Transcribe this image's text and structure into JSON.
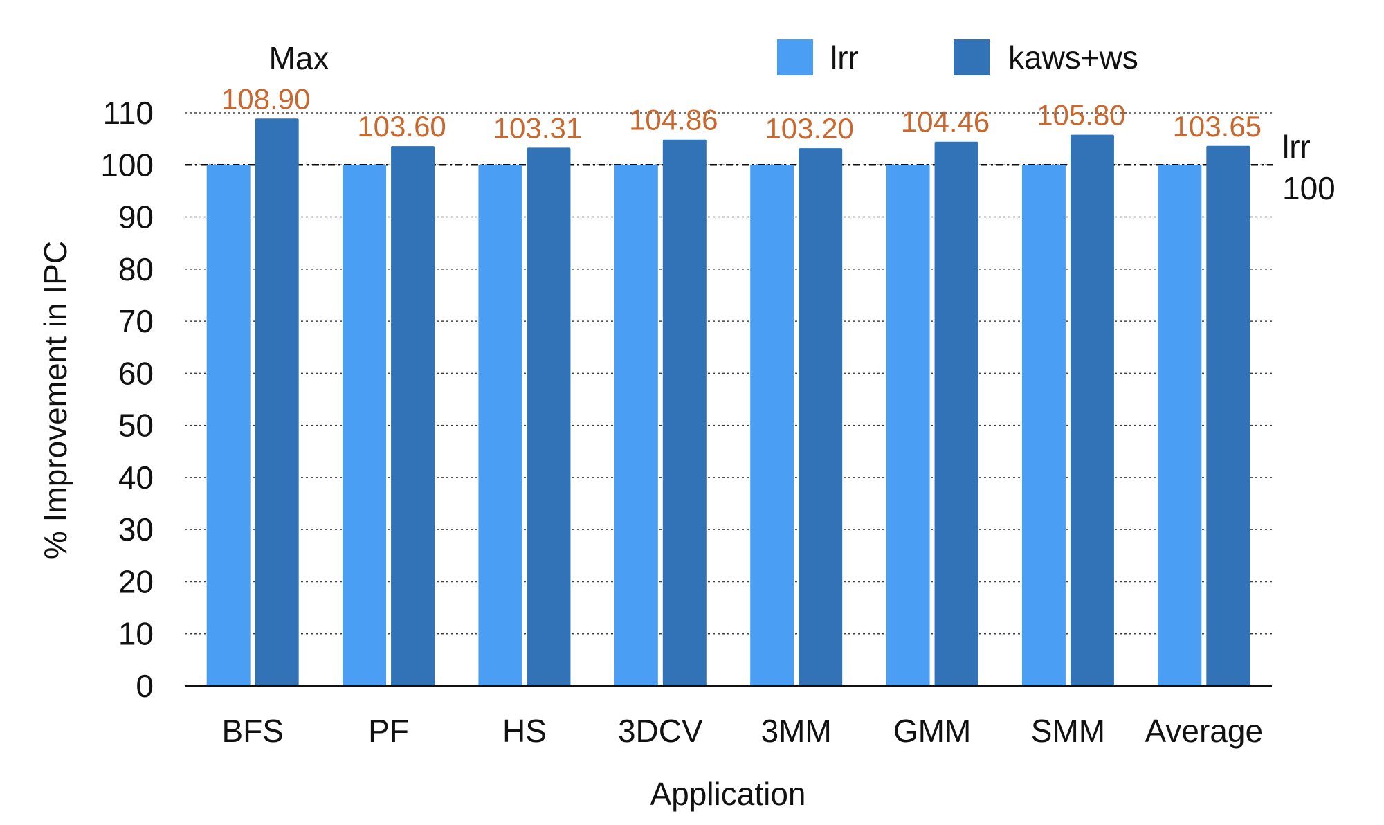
{
  "chart_data": {
    "type": "bar",
    "categories": [
      "BFS",
      "PF",
      "HS",
      "3DCV",
      "3MM",
      "GMM",
      "SMM",
      "Average"
    ],
    "series": [
      {
        "name": "lrr",
        "color": "#4a9ff5",
        "values": [
          100,
          100,
          100,
          100,
          100,
          100,
          100,
          100
        ]
      },
      {
        "name": "kaws+ws",
        "color": "#3173b6",
        "values": [
          108.9,
          103.6,
          103.31,
          104.86,
          103.2,
          104.46,
          105.8,
          103.65
        ]
      }
    ],
    "data_labels": [
      "108.90",
      "103.60",
      "103.31",
      "104.86",
      "103.20",
      "104.46",
      "105.80",
      "103.65"
    ],
    "data_label_color": "#c8672e",
    "xlabel": "Application",
    "ylabel": "% Improvement in IPC",
    "ylim": [
      0,
      110
    ],
    "yticks": [
      "0",
      "10",
      "20",
      "30",
      "40",
      "50",
      "60",
      "70",
      "80",
      "90",
      "100",
      "110"
    ],
    "grid": "horizontal dotted",
    "legend_position": "top-right",
    "reference_lines": [
      {
        "label": "Max",
        "value": 110
      },
      {
        "label": "lrr",
        "value_label": "100",
        "value": 100
      }
    ]
  }
}
